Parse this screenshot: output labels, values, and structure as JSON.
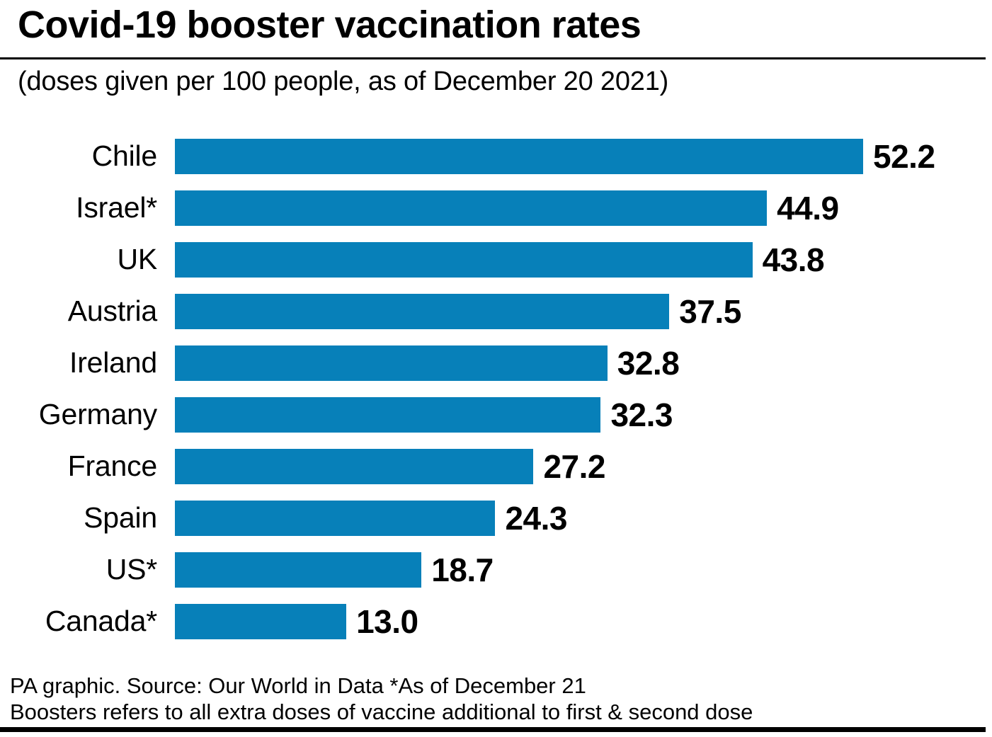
{
  "header": {
    "title": "Covid-19 booster vaccination rates",
    "subtitle": "(doses given per 100 people, as of December 20 2021)"
  },
  "chart_data": {
    "type": "bar",
    "orientation": "horizontal",
    "title": "Covid-19 booster vaccination rates",
    "subtitle": "(doses given per 100 people, as of December 20 2021)",
    "categories": [
      "Chile",
      "Israel*",
      "UK",
      "Austria",
      "Ireland",
      "Germany",
      "France",
      "Spain",
      "US*",
      "Canada*"
    ],
    "values": [
      52.2,
      44.9,
      43.8,
      37.5,
      32.8,
      32.3,
      27.2,
      24.3,
      18.7,
      13.0
    ],
    "value_labels": [
      "52.2",
      "44.9",
      "43.8",
      "37.5",
      "32.8",
      "32.3",
      "27.2",
      "24.3",
      "18.7",
      "13.0"
    ],
    "xlabel": "",
    "ylabel": "",
    "xlim": [
      0,
      52.2
    ],
    "grid": false,
    "legend": false,
    "value_label_position": "outside-end",
    "bar_color": "#0780B9"
  },
  "footer": {
    "line1": "PA graphic. Source: Our World in Data *As of December 21",
    "line2": "Boosters refers to all extra doses of vaccine additional to first & second dose"
  },
  "colors": {
    "bar": "#0780B9",
    "text": "#000000",
    "background": "#ffffff",
    "rule": "#000000"
  }
}
